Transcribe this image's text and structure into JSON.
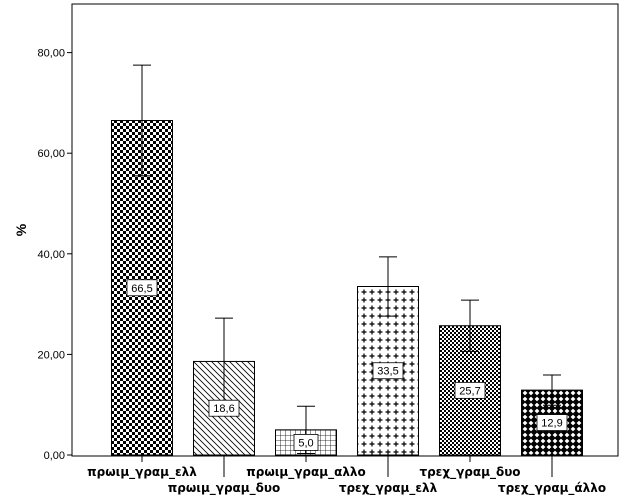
{
  "chart_data": {
    "type": "bar",
    "ylabel": "%",
    "ylim": [
      0,
      90
    ],
    "yticks": [
      "0,00",
      "20,00",
      "40,00",
      "60,00",
      "80,00"
    ],
    "ytick_values": [
      0,
      20,
      40,
      60,
      80
    ],
    "categories": [
      "πρωιμ_γραμ_ελλ",
      "πρωιμ_γραμ_δυο",
      "πρωιμ_γραμ_αλλο",
      "τρεχ_γραμ_ελλ",
      "τρεχ_γραμ_δυο",
      "τρεχ_γραμ_άλλο"
    ],
    "values": [
      66.5,
      18.6,
      5.0,
      33.5,
      25.7,
      12.9
    ],
    "data_labels": [
      "66,5",
      "18,6",
      "5,0",
      "33,5",
      "25,7",
      "12,9"
    ],
    "error_low": [
      55.5,
      10.0,
      0.3,
      27.6,
      20.6,
      9.9
    ],
    "error_high": [
      77.5,
      27.2,
      9.7,
      39.4,
      30.8,
      15.9
    ],
    "patterns": [
      "checker-fine",
      "diagonal",
      "grid",
      "crosses",
      "checker-dense",
      "diamond"
    ],
    "grid": false,
    "legend": "none"
  }
}
